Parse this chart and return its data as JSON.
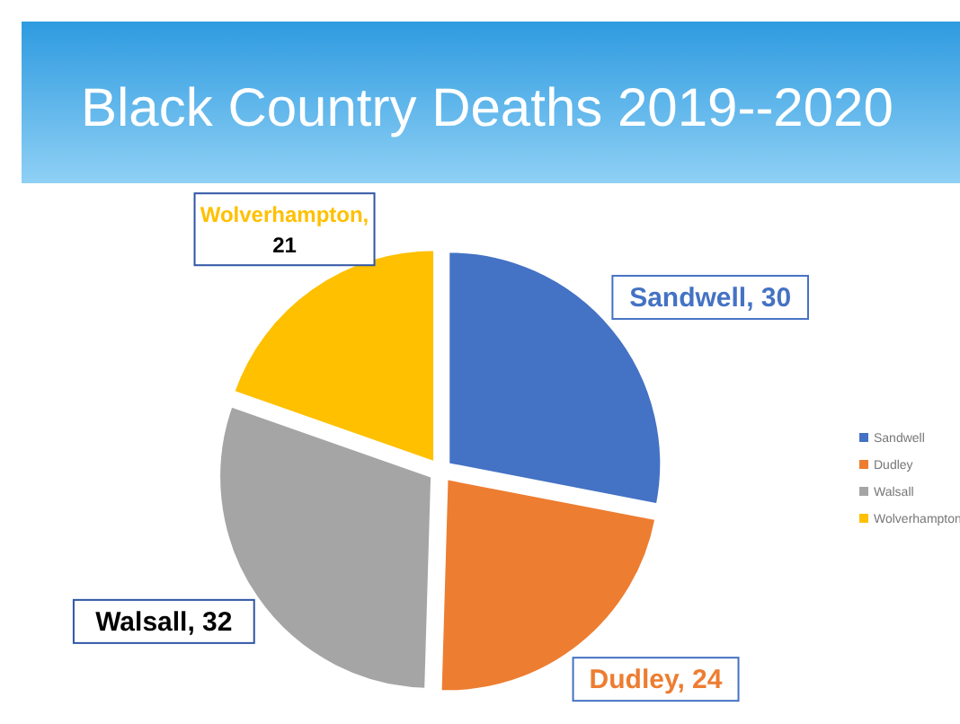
{
  "chart_data": {
    "type": "pie",
    "title": "Black Country Deaths 2019--2020",
    "categories": [
      "Sandwell",
      "Dudley",
      "Walsall",
      "Wolverhampton"
    ],
    "values": [
      30,
      24,
      32,
      21
    ],
    "colors": [
      "#4472c4",
      "#ed7d31",
      "#a5a5a5",
      "#ffc000"
    ],
    "value_labels": [
      "Sandwell, 30",
      "Dudley, 24",
      "Walsall, 32",
      "Wolverhampton, 21"
    ],
    "legend": "right"
  }
}
